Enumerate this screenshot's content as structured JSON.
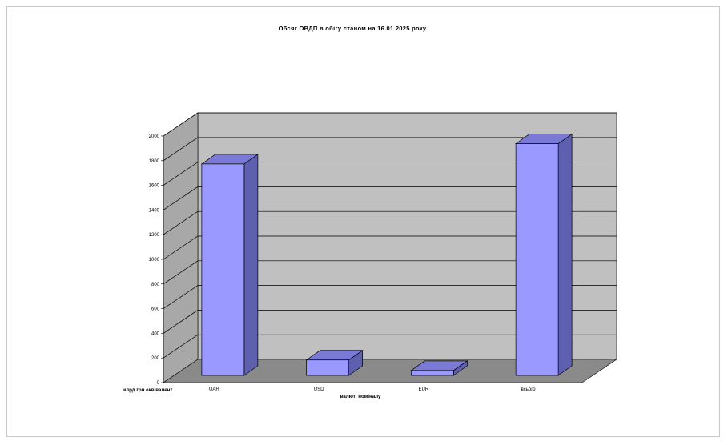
{
  "chart_data": {
    "type": "bar",
    "title": "Обсяг ОВДП в обігу станом на 16.01.2025 року",
    "xlabel": "валюті номіналу",
    "ylabel": "млрд грн.еквівалент",
    "categories": [
      "UAH",
      "USD",
      "EUR",
      "всього"
    ],
    "values": [
      1715,
      125,
      40,
      1880
    ],
    "ylim": [
      0,
      2000
    ],
    "yticks": [
      "0",
      "200",
      "400",
      "600",
      "800",
      "1000",
      "1200",
      "1400",
      "1600",
      "1800",
      "2000"
    ],
    "grid": true,
    "legend": "none",
    "colors": {
      "bar_front": "#9999ff",
      "bar_side": "#5f5faf",
      "bar_top": "#7a7ad6",
      "back_wall": "#c0c0c0",
      "side_wall": "#a8a8a8",
      "floor": "#8a8a8a"
    }
  }
}
